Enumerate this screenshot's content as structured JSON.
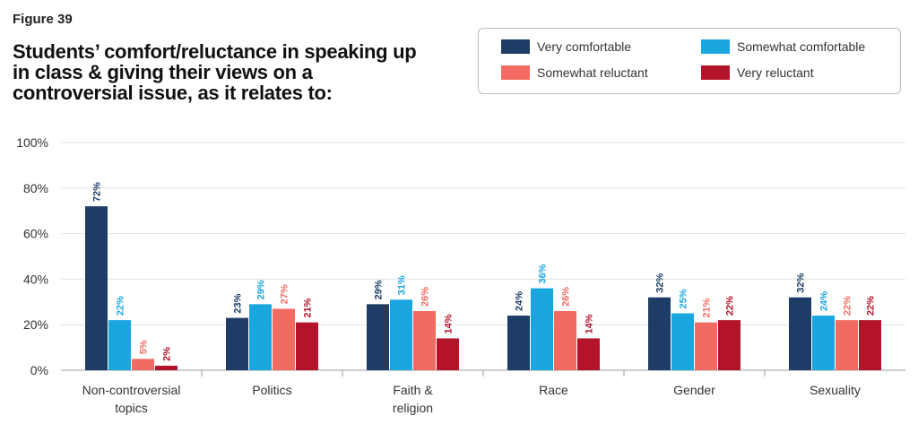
{
  "figure_label": "Figure 39",
  "title": "Students’ comfort/reluctance in speaking up in class & giving their views on a controversial issue, as it relates to:",
  "colors": {
    "very_comfortable": "#1d3d66",
    "somewhat_comfortable": "#1aa7e0",
    "somewhat_reluctant": "#f26b63",
    "very_reluctant": "#b3142b"
  },
  "chart_data": {
    "type": "bar",
    "categories": [
      "Non-controversial topics",
      "Politics",
      "Faith & religion",
      "Race",
      "Gender",
      "Sexuality"
    ],
    "series": [
      {
        "name": "Very comfortable",
        "values": [
          72,
          23,
          29,
          24,
          32,
          32
        ],
        "labels": [
          "72%",
          "23%",
          "29%",
          "24%",
          "32%",
          "32%"
        ]
      },
      {
        "name": "Somewhat comfortable",
        "values": [
          22,
          29,
          31,
          36,
          25,
          24
        ],
        "labels": [
          "22%",
          "29%",
          "31%",
          "36%",
          "25%",
          "24%"
        ]
      },
      {
        "name": "Somewhat reluctant",
        "values": [
          5,
          27,
          26,
          26,
          21,
          22
        ],
        "labels": [
          "5%",
          "27%",
          "26%",
          "26%",
          "21%",
          "22%"
        ]
      },
      {
        "name": "Very reluctant",
        "values": [
          2,
          21,
          14,
          14,
          22,
          22
        ],
        "labels": [
          "2%",
          "21%",
          "14%",
          "14%",
          "22%",
          "22%"
        ]
      }
    ],
    "yticks": [
      "0%",
      "20%",
      "40%",
      "60%",
      "80%",
      "100%"
    ],
    "ylim": [
      0,
      100
    ],
    "grid": true,
    "legend": "top-right"
  }
}
